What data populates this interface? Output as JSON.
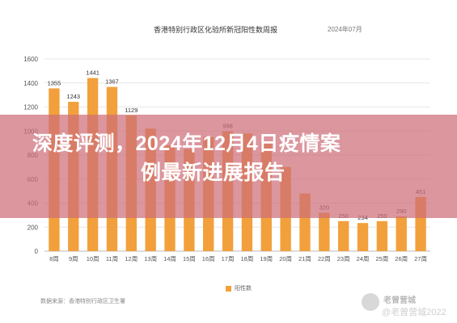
{
  "header": {
    "title": "香港特别行政区化验所新冠阳性数周报",
    "date": "2024年07月"
  },
  "footer": {
    "source": "数据来源：香港特别行政区卫生署"
  },
  "overlay": {
    "headline_line1": "深度评测，2024年12月4日疫情案",
    "headline_line2": "例最新进展报告"
  },
  "watermark": {
    "brand": "老曾营城",
    "handle": "@老曾营城2022",
    "icon": "camera-badge-icon"
  },
  "colors": {
    "bar": "#f2a03c",
    "grid": "#e6e6e6",
    "axis_text": "#555555",
    "banner": "#cd6e78"
  },
  "chart_data": {
    "type": "bar",
    "categories": [
      "8周",
      "9周",
      "10周",
      "11周",
      "12周",
      "13周",
      "14周",
      "15周",
      "16周",
      "17周",
      "18周",
      "19周",
      "20周",
      "21周",
      "22周",
      "23周",
      "24周",
      "25周",
      "26周",
      "27周"
    ],
    "values": [
      1355,
      1243,
      1441,
      1367,
      1129,
      1020,
      880,
      850,
      950,
      998,
      980,
      900,
      700,
      480,
      320,
      250,
      234,
      250,
      290,
      451
    ],
    "data_labels": [
      "1355",
      "1243",
      "1441",
      "1367",
      "1129",
      "",
      "",
      "",
      "",
      "998",
      "",
      "",
      "",
      "",
      "320",
      "250",
      "234",
      "250",
      "290",
      "451"
    ],
    "ylim": [
      0,
      1600
    ],
    "yticks": [
      "0",
      "200",
      "400",
      "600",
      "800",
      "1000",
      "1200",
      "1400",
      "1600"
    ],
    "legend": "阳性数",
    "grid": true,
    "title": "香港特别行政区化验所新冠阳性数周报"
  }
}
